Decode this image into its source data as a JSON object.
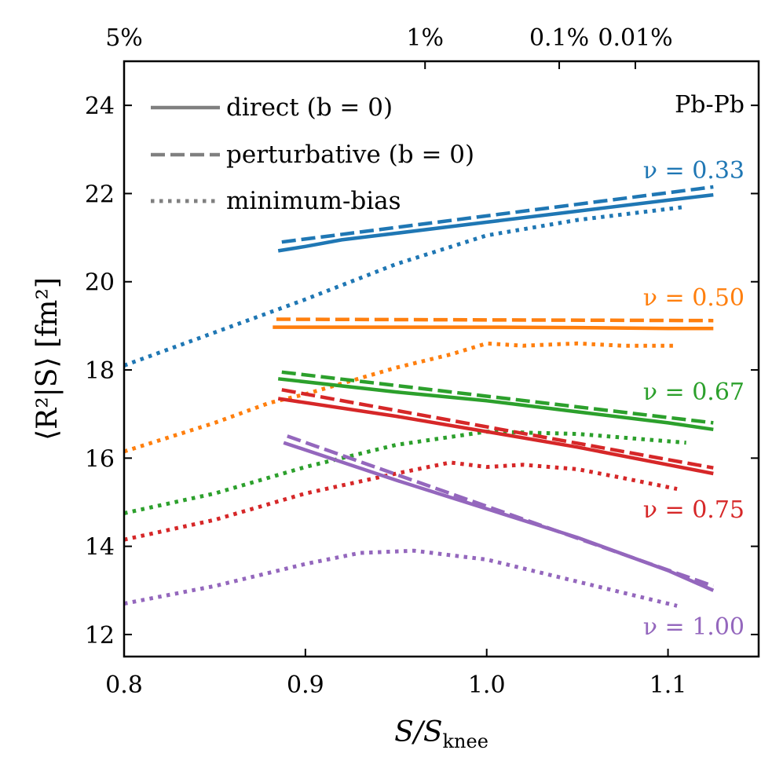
{
  "chart_data": {
    "type": "line",
    "title": "",
    "xlabel": "S/S",
    "xlabel_sub": "knee",
    "ylabel": "⟨R²|S⟩ [fm²]",
    "xlim": [
      0.8,
      1.15
    ],
    "ylim": [
      11.5,
      25
    ],
    "x_ticks": [
      0.8,
      0.9,
      1.0,
      1.1
    ],
    "x_tick_labels": [
      "0.8",
      "0.9",
      "1.0",
      "1.1"
    ],
    "y_ticks": [
      12,
      14,
      16,
      18,
      20,
      22,
      24
    ],
    "y_tick_labels": [
      "12",
      "14",
      "16",
      "18",
      "20",
      "22",
      "24"
    ],
    "top_axis": {
      "ticks": [
        0.8,
        0.966,
        1.04,
        1.082
      ],
      "labels": [
        "5%",
        "1%",
        "0.1%",
        "0.01%"
      ]
    },
    "annotation": "Pb-Pb",
    "legend": [
      {
        "label": "direct (b = 0)",
        "style": "solid"
      },
      {
        "label": "perturbative (b = 0)",
        "style": "dashed"
      },
      {
        "label": "minimum-bias",
        "style": "dotted"
      }
    ],
    "series": [
      {
        "nu_label": "ν = 0.33",
        "color": "#1f77b4",
        "direct": {
          "x": [
            0.885,
            0.9,
            0.92,
            0.95,
            1.0,
            1.05,
            1.1,
            1.125
          ],
          "y": [
            20.7,
            20.8,
            20.95,
            21.1,
            21.35,
            21.6,
            21.85,
            21.97
          ]
        },
        "perturbative": {
          "x": [
            0.887,
            1.125
          ],
          "y": [
            20.9,
            22.15
          ]
        },
        "minbias": {
          "x": [
            0.8,
            0.85,
            0.9,
            0.95,
            1.0,
            1.05,
            1.11
          ],
          "y": [
            18.1,
            18.85,
            19.6,
            20.4,
            21.05,
            21.4,
            21.7
          ]
        }
      },
      {
        "nu_label": "ν = 0.50",
        "color": "#ff7f0e",
        "direct": {
          "x": [
            0.882,
            0.95,
            1.0,
            1.05,
            1.1,
            1.125
          ],
          "y": [
            18.97,
            18.97,
            18.97,
            18.96,
            18.94,
            18.94
          ]
        },
        "perturbative": {
          "x": [
            0.884,
            1.125
          ],
          "y": [
            19.15,
            19.12
          ]
        },
        "minbias": {
          "x": [
            0.8,
            0.85,
            0.88,
            0.9,
            0.95,
            0.98,
            1.0,
            1.02,
            1.05,
            1.075,
            1.105
          ],
          "y": [
            16.15,
            16.8,
            17.25,
            17.45,
            18.05,
            18.35,
            18.6,
            18.55,
            18.6,
            18.55,
            18.55
          ]
        }
      },
      {
        "nu_label": "ν = 0.67",
        "color": "#2ca02c",
        "direct": {
          "x": [
            0.885,
            0.95,
            1.0,
            1.05,
            1.1,
            1.125
          ],
          "y": [
            17.8,
            17.5,
            17.3,
            17.05,
            16.8,
            16.65
          ]
        },
        "perturbative": {
          "x": [
            0.887,
            1.125
          ],
          "y": [
            17.95,
            16.8
          ]
        },
        "minbias": {
          "x": [
            0.8,
            0.85,
            0.9,
            0.95,
            1.0,
            1.05,
            1.08,
            1.11
          ],
          "y": [
            14.75,
            15.2,
            15.8,
            16.3,
            16.6,
            16.55,
            16.45,
            16.35
          ]
        }
      },
      {
        "nu_label": "ν = 0.75",
        "color": "#d62728",
        "direct": {
          "x": [
            0.885,
            0.95,
            1.0,
            1.05,
            1.1,
            1.125
          ],
          "y": [
            17.35,
            16.95,
            16.6,
            16.25,
            15.85,
            15.65
          ]
        },
        "perturbative": {
          "x": [
            0.887,
            1.125
          ],
          "y": [
            17.55,
            15.78
          ]
        },
        "minbias": {
          "x": [
            0.8,
            0.85,
            0.9,
            0.95,
            0.98,
            1.0,
            1.02,
            1.05,
            1.075,
            1.105
          ],
          "y": [
            14.15,
            14.6,
            15.2,
            15.65,
            15.9,
            15.8,
            15.85,
            15.75,
            15.55,
            15.3
          ]
        }
      },
      {
        "nu_label": "ν = 1.00",
        "color": "#9467bd",
        "direct": {
          "x": [
            0.888,
            0.95,
            1.0,
            1.05,
            1.1,
            1.125
          ],
          "y": [
            16.35,
            15.5,
            14.85,
            14.2,
            13.45,
            13.0
          ]
        },
        "perturbative": {
          "x": [
            0.89,
            1.125
          ],
          "y": [
            16.5,
            13.1
          ]
        },
        "minbias": {
          "x": [
            0.8,
            0.85,
            0.9,
            0.93,
            0.96,
            0.98,
            1.0,
            1.05,
            1.08,
            1.105
          ],
          "y": [
            12.7,
            13.1,
            13.6,
            13.85,
            13.9,
            13.8,
            13.7,
            13.2,
            12.9,
            12.65
          ]
        }
      }
    ]
  }
}
